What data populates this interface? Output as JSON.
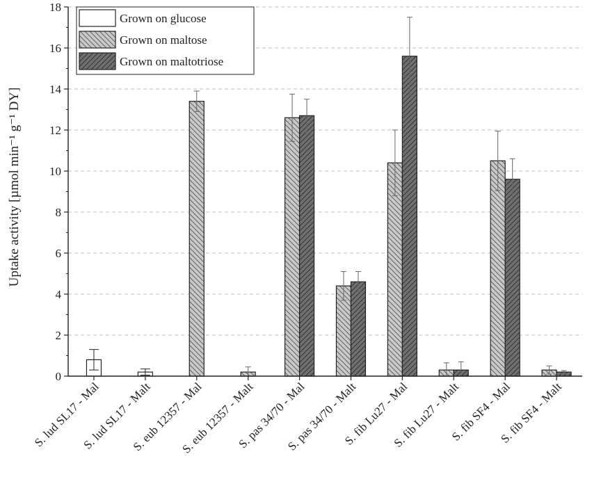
{
  "chart_data": {
    "type": "bar",
    "ylabel": "Uptake activity [µmol min⁻¹ g⁻¹ DY]",
    "xlabel": "",
    "ylim": [
      0,
      18
    ],
    "yticks": [
      0,
      2,
      4,
      6,
      8,
      10,
      12,
      14,
      16,
      18
    ],
    "grid": true,
    "legend_position": "top-left",
    "categories": [
      "S. lud SL17 - Mal",
      "S. lud SL17 - Malt",
      "S. eub 12357 - Mal",
      "S. eub 12357 - Malt",
      "S. pas 34/70 - Mal",
      "S. pas 34/70 - Malt",
      "S. fib Lu27 - Mal",
      "S. fib Lu27 - Malt",
      "S. fib SF4 - Mal",
      "S. fib SF4 - Malt"
    ],
    "series": [
      {
        "name": "Grown on glucose",
        "color": "#ffffff",
        "pattern": "none",
        "values": [
          0.8,
          0.2,
          null,
          null,
          null,
          null,
          null,
          null,
          null,
          null
        ],
        "errors": [
          0.5,
          0.15,
          null,
          null,
          null,
          null,
          null,
          null,
          null,
          null
        ]
      },
      {
        "name": "Grown on maltose",
        "color": "#c8c8c8",
        "pattern": "backslash",
        "values": [
          null,
          null,
          13.4,
          0.2,
          12.6,
          4.4,
          10.4,
          0.3,
          10.5,
          0.3
        ],
        "errors": [
          null,
          null,
          0.5,
          0.25,
          1.15,
          0.7,
          1.6,
          0.35,
          1.45,
          0.2
        ]
      },
      {
        "name": "Grown on maltotriose",
        "color": "#707070",
        "pattern": "slash",
        "values": [
          null,
          null,
          null,
          null,
          12.7,
          4.6,
          15.6,
          0.3,
          9.6,
          0.2
        ],
        "errors": [
          null,
          null,
          null,
          null,
          0.8,
          0.5,
          1.9,
          0.4,
          1.0,
          0.07
        ]
      }
    ]
  }
}
